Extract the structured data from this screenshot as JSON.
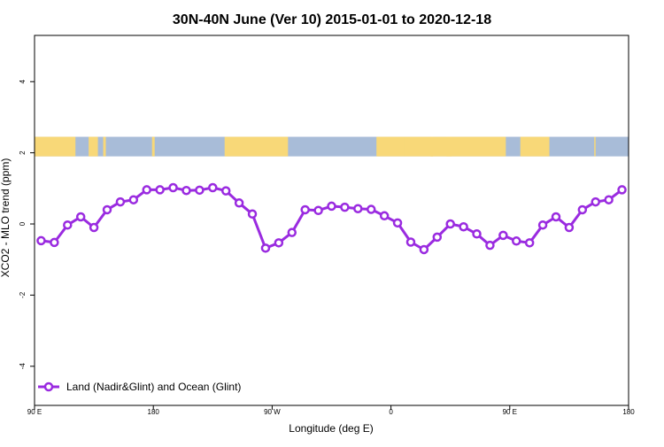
{
  "chart_data": {
    "type": "line",
    "title": "30N-40N June (Ver 10)   2015-01-01 to 2020-12-18",
    "xlabel": "Longitude (deg E)",
    "ylabel": "XCO2 - MLO trend (ppm)",
    "x_ticks": [
      {
        "value": -90,
        "label": "90 E"
      },
      {
        "value": 0,
        "label": "180"
      },
      {
        "value": 90,
        "label": "90 W"
      },
      {
        "value": 180,
        "label": "0"
      },
      {
        "value": 270,
        "label": "90 E"
      },
      {
        "value": 360,
        "label": "180"
      }
    ],
    "y_ticks": [
      {
        "value": -4,
        "label": "-4"
      },
      {
        "value": -2,
        "label": "-2"
      },
      {
        "value": 0,
        "label": "0"
      },
      {
        "value": 2,
        "label": "2"
      },
      {
        "value": 4,
        "label": "4"
      }
    ],
    "xlim": [
      -90,
      360
    ],
    "ylim": [
      -5.1,
      5.3
    ],
    "grid": false,
    "legend_position": "bottom-left",
    "map_strip": {
      "y_range": [
        1.9,
        2.45
      ],
      "land_color": "#f8d878",
      "ocean_color": "#a8bcd8",
      "land_spans": [
        [
          -90,
          -59
        ],
        [
          -49,
          -42
        ],
        [
          -38,
          -36
        ],
        [
          54,
          102
        ],
        [
          -1,
          1
        ],
        [
          169,
          190
        ],
        [
          190,
          212
        ],
        [
          222,
          226
        ],
        [
          212,
          210
        ],
        [
          210,
          267
        ],
        [
          278,
          300
        ],
        [
          334,
          335
        ]
      ]
    },
    "series": [
      {
        "name": "Land (Nadir&Glint) and Ocean (Glint)",
        "color": "#9a2be0",
        "x": [
          -85,
          -75,
          -65,
          -55,
          -45,
          -35,
          -25,
          -15,
          -5,
          5,
          15,
          25,
          35,
          45,
          55,
          65,
          75,
          85,
          95,
          105,
          115,
          125,
          135,
          145,
          155,
          165,
          175,
          185,
          195,
          205,
          215,
          225,
          235,
          245,
          255,
          265,
          275,
          285,
          295,
          305,
          315,
          325,
          335,
          345,
          355
        ],
        "y": [
          -0.47,
          -0.52,
          -0.03,
          0.2,
          -0.1,
          0.4,
          0.62,
          0.68,
          0.96,
          0.96,
          1.02,
          0.94,
          0.95,
          1.02,
          0.93,
          0.59,
          0.28,
          -0.68,
          -0.53,
          -0.24,
          0.4,
          0.38,
          0.5,
          0.47,
          0.43,
          0.41,
          0.23,
          0.03,
          -0.51,
          -0.72,
          -0.37,
          0.0,
          -0.08,
          -0.28,
          -0.6,
          -0.32,
          -0.48,
          -0.53,
          -0.03,
          0.2,
          -0.1,
          0.4,
          0.62,
          0.68,
          0.96
        ]
      }
    ]
  }
}
